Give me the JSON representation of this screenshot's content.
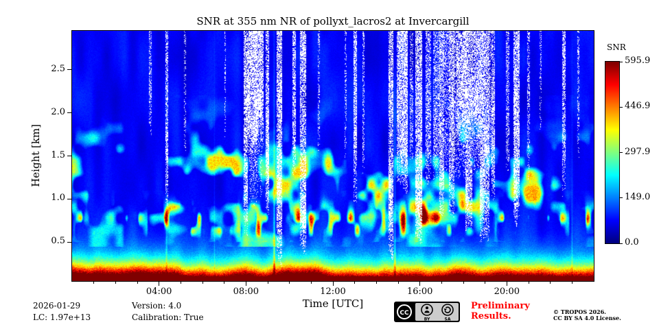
{
  "chart_data": {
    "type": "heatmap",
    "title": "SNR at 355 nm NR of pollyxt_lacros2 at Invercargill",
    "xlabel": "Time [UTC]",
    "ylabel": "Height [km]",
    "x_range_hours": [
      0,
      24
    ],
    "x_ticks": [
      {
        "hour": 4,
        "label": "04:00"
      },
      {
        "hour": 8,
        "label": "08:00"
      },
      {
        "hour": 12,
        "label": "12:00"
      },
      {
        "hour": 16,
        "label": "16:00"
      },
      {
        "hour": 20,
        "label": "20:00"
      }
    ],
    "x_minor_tick_every_hours": 1,
    "y_range_km": [
      0.05,
      2.95
    ],
    "y_ticks": [
      {
        "km": 0.5,
        "label": "0.5"
      },
      {
        "km": 1.0,
        "label": "1.0"
      },
      {
        "km": 1.5,
        "label": "1.5"
      },
      {
        "km": 2.0,
        "label": "2.0"
      },
      {
        "km": 2.5,
        "label": "2.5"
      }
    ],
    "colorbar": {
      "label": "SNR",
      "min": 0.0,
      "max": 595.9,
      "colormap": "jet",
      "ticks": [
        {
          "value": 0.0,
          "label": "0.0"
        },
        {
          "value": 149.0,
          "label": "149.0"
        },
        {
          "value": 297.9,
          "label": "297.9"
        },
        {
          "value": 446.9,
          "label": "446.9"
        },
        {
          "value": 595.9,
          "label": "595.9"
        }
      ]
    },
    "grid": false,
    "features": {
      "description": "Lidar SNR quicklook: very high SNR (red/orange/yellow) surface band below ~0.35 km all day; patchy aerosol structures (green/cyan, SNR ~100-300) between ~0.6 and 1.7 km; blue low-SNR background aloft; white = no data / cloud-attenuated speckled columns.",
      "surface_high_snr_band_top_km": 0.35,
      "aerosol_layer_band_km": [
        0.6,
        1.7
      ],
      "no_data_stripes_hours": [
        [
          3.55,
          3.65,
          1.8,
          0.6
        ],
        [
          4.3,
          4.42,
          0.95,
          0.7
        ],
        [
          5.15,
          5.25,
          1.5,
          0.4
        ],
        [
          7.0,
          7.08,
          1.7,
          0.4
        ],
        [
          7.9,
          8.08,
          0.55,
          0.8
        ],
        [
          8.1,
          8.8,
          1.5,
          0.92
        ],
        [
          8.15,
          8.75,
          1.0,
          0.35
        ],
        [
          8.9,
          9.05,
          0.85,
          0.85
        ],
        [
          9.42,
          9.65,
          0.3,
          0.9
        ],
        [
          10.15,
          10.28,
          1.25,
          0.7
        ],
        [
          10.5,
          10.78,
          0.42,
          0.88
        ],
        [
          11.3,
          11.4,
          1.6,
          0.4
        ],
        [
          12.55,
          12.62,
          1.5,
          0.4
        ],
        [
          12.95,
          13.12,
          1.05,
          0.75
        ],
        [
          13.35,
          13.45,
          1.35,
          0.5
        ],
        [
          14.55,
          14.78,
          0.32,
          0.9
        ],
        [
          14.95,
          15.45,
          1.15,
          0.85
        ],
        [
          15.55,
          15.7,
          1.4,
          0.5
        ],
        [
          15.8,
          16.1,
          0.5,
          0.88
        ],
        [
          16.25,
          16.5,
          1.2,
          0.6
        ],
        [
          16.6,
          19.45,
          1.3,
          0.5
        ],
        [
          16.9,
          17.1,
          0.85,
          0.8
        ],
        [
          17.35,
          17.6,
          0.75,
          0.85
        ],
        [
          17.7,
          19.2,
          1.55,
          0.8
        ],
        [
          18.1,
          18.4,
          0.7,
          0.85
        ],
        [
          18.75,
          19.2,
          0.55,
          0.9
        ],
        [
          19.3,
          19.45,
          1.0,
          0.7
        ],
        [
          19.95,
          20.1,
          1.4,
          0.55
        ],
        [
          20.3,
          20.6,
          0.75,
          0.88
        ],
        [
          20.95,
          21.05,
          1.25,
          0.5
        ],
        [
          21.5,
          21.6,
          1.7,
          0.4
        ],
        [
          22.55,
          22.72,
          1.05,
          0.7
        ],
        [
          23.25,
          23.35,
          1.5,
          0.45
        ]
      ],
      "bright_columns": [
        [
          9.3,
          0.07,
          1.0
        ],
        [
          14.85,
          0.07,
          0.75
        ],
        [
          4.35,
          0.06,
          0.5
        ],
        [
          6.55,
          0.04,
          0.3
        ],
        [
          23.0,
          0.05,
          0.35
        ]
      ]
    }
  },
  "footer": {
    "date": "2026-01-29",
    "lc": "LC: 1.97e+13",
    "version": "Version: 4.0",
    "calibration": "Calibration: True",
    "preliminary_line1": "Preliminary",
    "preliminary_line2": "Results.",
    "copyright_line1": "© TROPOS 2026.",
    "copyright_line2": "CC BY SA 4.0 License.",
    "cc_badge": {
      "cc": "CC",
      "by": "BY",
      "sa": "SA"
    }
  },
  "colors": {
    "preliminary_red": "#ff0000",
    "no_data_white": "#ffffff",
    "frame_black": "#000000",
    "background": "#ffffff"
  }
}
